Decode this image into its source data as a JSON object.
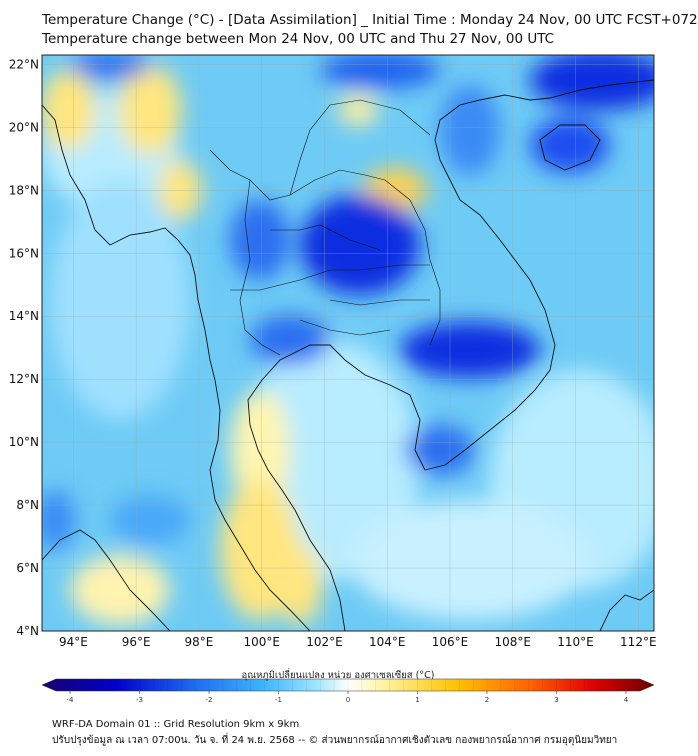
{
  "header": {
    "title_line1": "Temperature Change (°C) - [Data Assimilation] _ Initial Time : Monday 24 Nov, 00 UTC FCST+072",
    "title_line2": "Temperature change between Mon 24 Nov, 00 UTC and Thu 27 Nov, 00 UTC"
  },
  "map": {
    "lat_labels": [
      "22°N",
      "20°N",
      "18°N",
      "16°N",
      "14°N",
      "12°N",
      "10°N",
      "8°N",
      "6°N",
      "4°N"
    ],
    "lon_labels": [
      "94°E",
      "96°E",
      "98°E",
      "100°E",
      "102°E",
      "104°E",
      "106°E",
      "108°E",
      "110°E",
      "112°E"
    ],
    "lat_values": [
      22,
      20,
      18,
      16,
      14,
      12,
      10,
      8,
      6,
      4
    ],
    "lon_values": [
      94,
      96,
      98,
      100,
      102,
      104,
      106,
      108,
      110,
      112
    ],
    "extent": {
      "lon_min": 93,
      "lon_max": 112.5,
      "lat_min": 4,
      "lat_max": 22.3
    }
  },
  "colorbar": {
    "label": "อุณหภูมิเปลี่ยนแปลง หน่วย องศาเซลเซียส (°C)",
    "ticks": [
      "-4",
      "-3",
      "-2",
      "-1",
      "0",
      "1",
      "2",
      "3",
      "4"
    ],
    "tick_values": [
      -4,
      -3,
      -2,
      -1,
      0,
      1,
      2,
      3,
      4
    ],
    "colors": [
      "#1a0070",
      "#0000c8",
      "#1e6cf0",
      "#3cb4ff",
      "#a0e6ff",
      "#ffffff",
      "#fff3a0",
      "#ffc000",
      "#ff6000",
      "#e00000",
      "#6a0000"
    ]
  },
  "footer": {
    "line1": "WRF-DA Domain 01 :: Grid Resolution 9km x 9km",
    "line2": "ปรับปรุงข้อมูล ณ เวลา 07:00น. วัน จ. ที่ 24 พ.ย. 2568 -- © ส่วนพยากรณ์อากาศเชิงตัวเลข กองพยากรณ์อากาศ กรมอุตุนิยมวิทยา"
  }
}
